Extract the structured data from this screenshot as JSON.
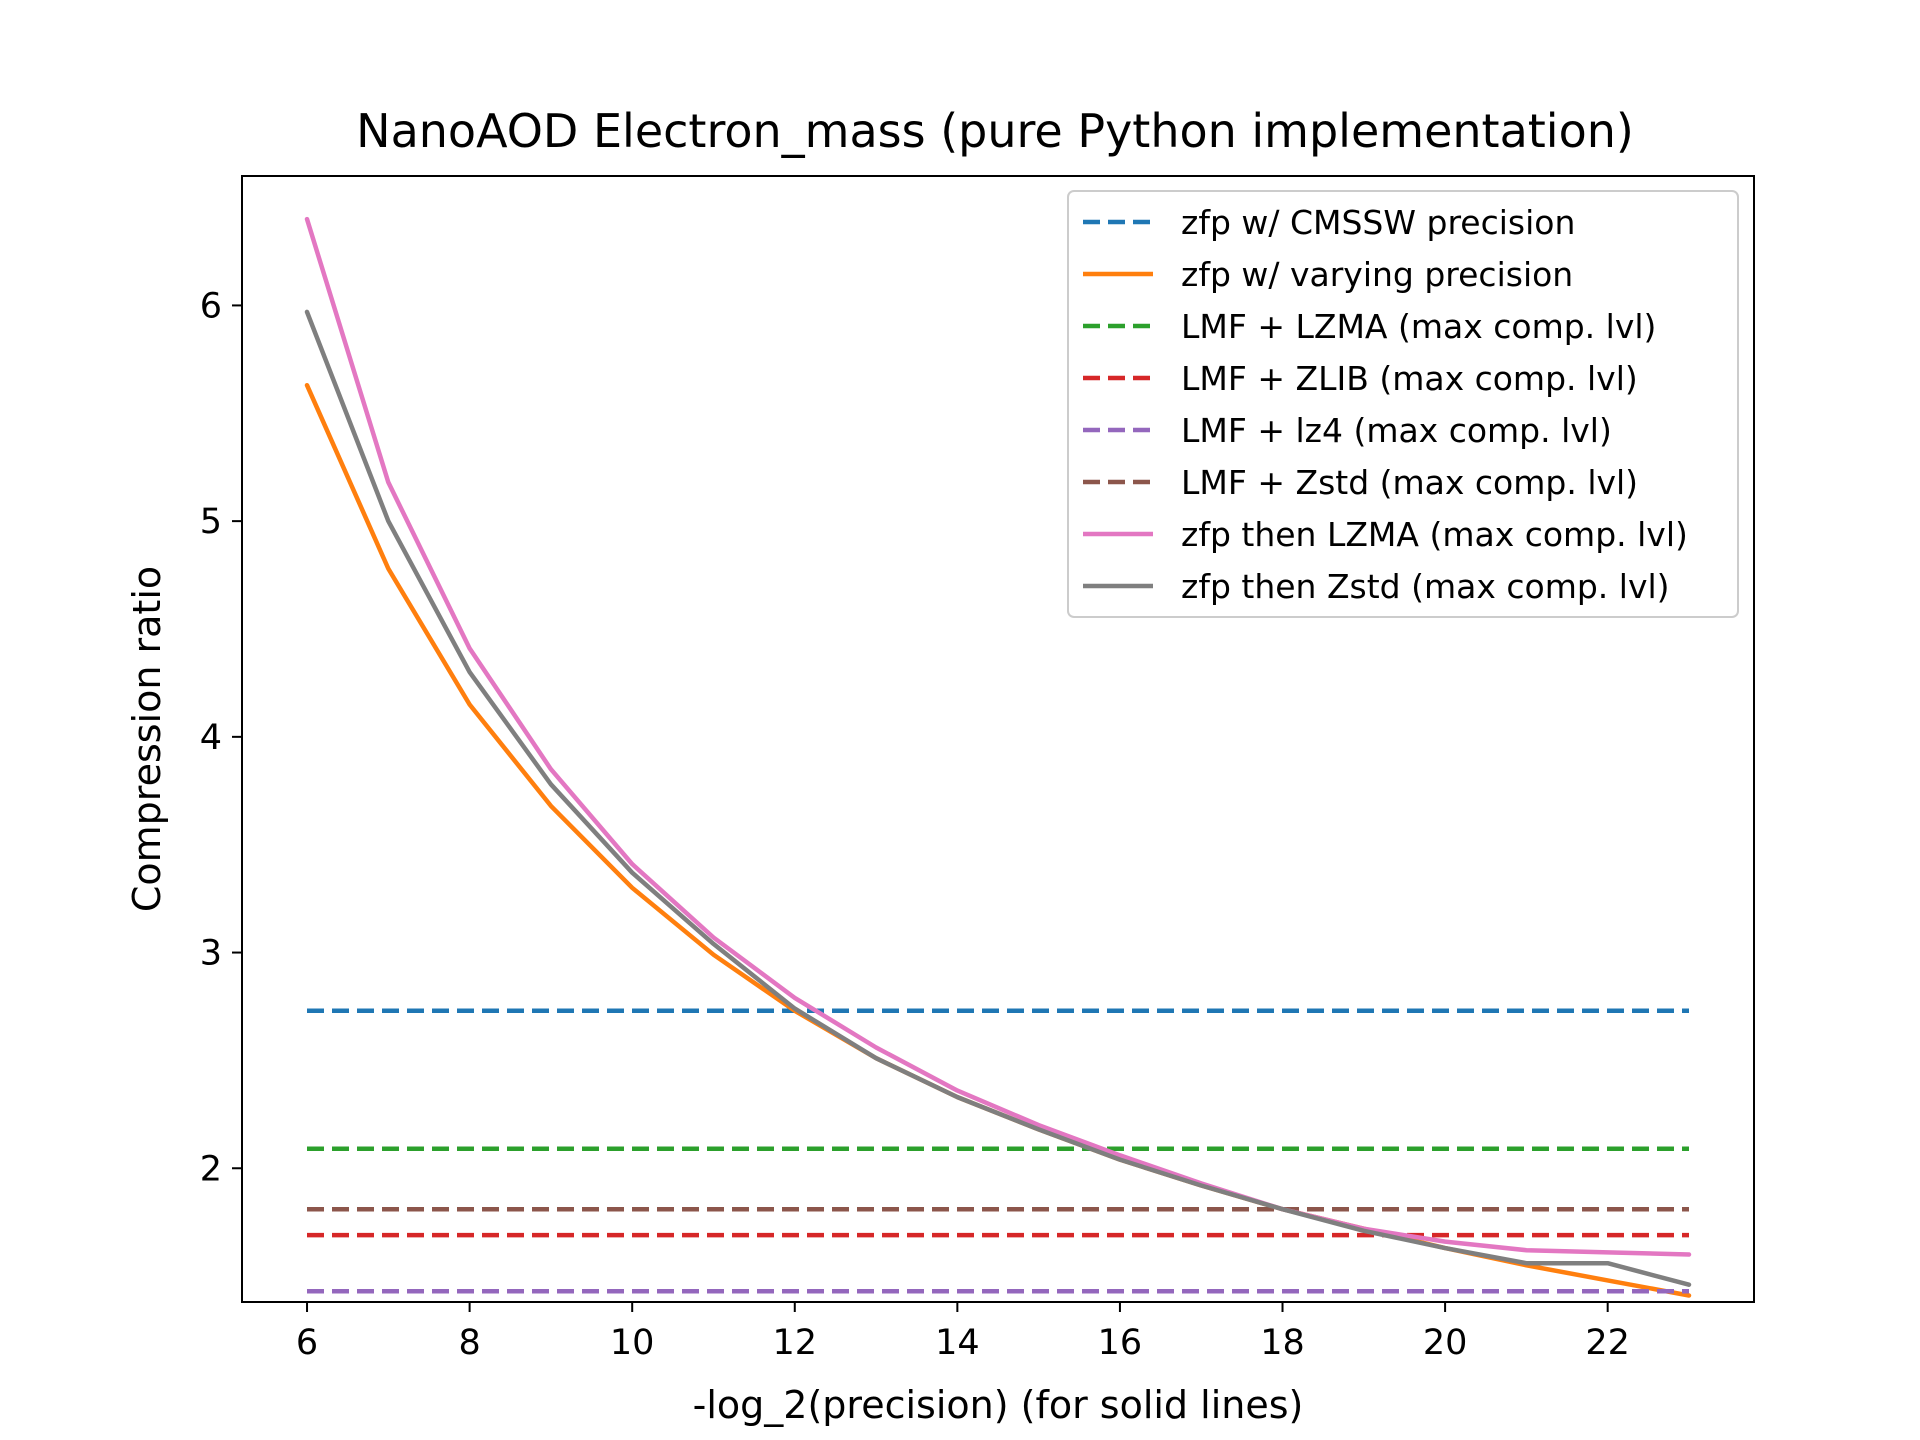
{
  "chart_data": {
    "type": "line",
    "title": "NanoAOD Electron_mass (pure Python implementation)",
    "xlabel": "-log_2(precision) (for solid lines)",
    "ylabel": "Compression ratio",
    "xlim": [
      5.2,
      23.8
    ],
    "ylim": [
      1.38,
      6.6
    ],
    "xticks": [
      6,
      8,
      10,
      12,
      14,
      16,
      18,
      20,
      22
    ],
    "yticks": [
      2,
      3,
      4,
      5,
      6
    ],
    "grid": false,
    "legend_position": "upper right",
    "x": [
      6,
      7,
      8,
      9,
      10,
      11,
      12,
      13,
      14,
      15,
      16,
      17,
      18,
      19,
      20,
      21,
      22,
      23
    ],
    "series": [
      {
        "name": "zfp w/ CMSSW precision",
        "style": "dashed",
        "color": "#1f77b4",
        "values": [
          2.73,
          2.73,
          2.73,
          2.73,
          2.73,
          2.73,
          2.73,
          2.73,
          2.73,
          2.73,
          2.73,
          2.73,
          2.73,
          2.73,
          2.73,
          2.73,
          2.73,
          2.73
        ]
      },
      {
        "name": "zfp w/ varying precision",
        "style": "solid",
        "color": "#ff7f0e",
        "values": [
          5.63,
          4.78,
          4.15,
          3.68,
          3.3,
          2.99,
          2.73,
          2.51,
          2.33,
          2.18,
          2.04,
          1.92,
          1.81,
          1.72,
          1.63,
          1.55,
          1.48,
          1.41
        ]
      },
      {
        "name": "LMF + LZMA (max comp. lvl)",
        "style": "dashed",
        "color": "#2ca02c",
        "values": [
          2.09,
          2.09,
          2.09,
          2.09,
          2.09,
          2.09,
          2.09,
          2.09,
          2.09,
          2.09,
          2.09,
          2.09,
          2.09,
          2.09,
          2.09,
          2.09,
          2.09,
          2.09
        ]
      },
      {
        "name": "LMF + ZLIB (max comp. lvl)",
        "style": "dashed",
        "color": "#d62728",
        "values": [
          1.69,
          1.69,
          1.69,
          1.69,
          1.69,
          1.69,
          1.69,
          1.69,
          1.69,
          1.69,
          1.69,
          1.69,
          1.69,
          1.69,
          1.69,
          1.69,
          1.69,
          1.69
        ]
      },
      {
        "name": "LMF + lz4 (max comp. lvl)",
        "style": "dashed",
        "color": "#9467bd",
        "values": [
          1.43,
          1.43,
          1.43,
          1.43,
          1.43,
          1.43,
          1.43,
          1.43,
          1.43,
          1.43,
          1.43,
          1.43,
          1.43,
          1.43,
          1.43,
          1.43,
          1.43,
          1.43
        ]
      },
      {
        "name": "LMF + Zstd (max comp. lvl)",
        "style": "dashed",
        "color": "#8c564b",
        "values": [
          1.81,
          1.81,
          1.81,
          1.81,
          1.81,
          1.81,
          1.81,
          1.81,
          1.81,
          1.81,
          1.81,
          1.81,
          1.81,
          1.81,
          1.81,
          1.81,
          1.81,
          1.81
        ]
      },
      {
        "name": "zfp then LZMA (max comp. lvl)",
        "style": "solid",
        "color": "#e377c2",
        "values": [
          6.4,
          5.18,
          4.41,
          3.85,
          3.41,
          3.07,
          2.79,
          2.56,
          2.36,
          2.2,
          2.06,
          1.93,
          1.81,
          1.72,
          1.66,
          1.62,
          1.61,
          1.6
        ]
      },
      {
        "name": "zfp then Zstd (max comp. lvl)",
        "style": "solid",
        "color": "#7f7f7f",
        "values": [
          5.97,
          5.0,
          4.3,
          3.78,
          3.37,
          3.04,
          2.74,
          2.51,
          2.33,
          2.18,
          2.04,
          1.92,
          1.81,
          1.71,
          1.63,
          1.56,
          1.56,
          1.46
        ]
      }
    ]
  }
}
